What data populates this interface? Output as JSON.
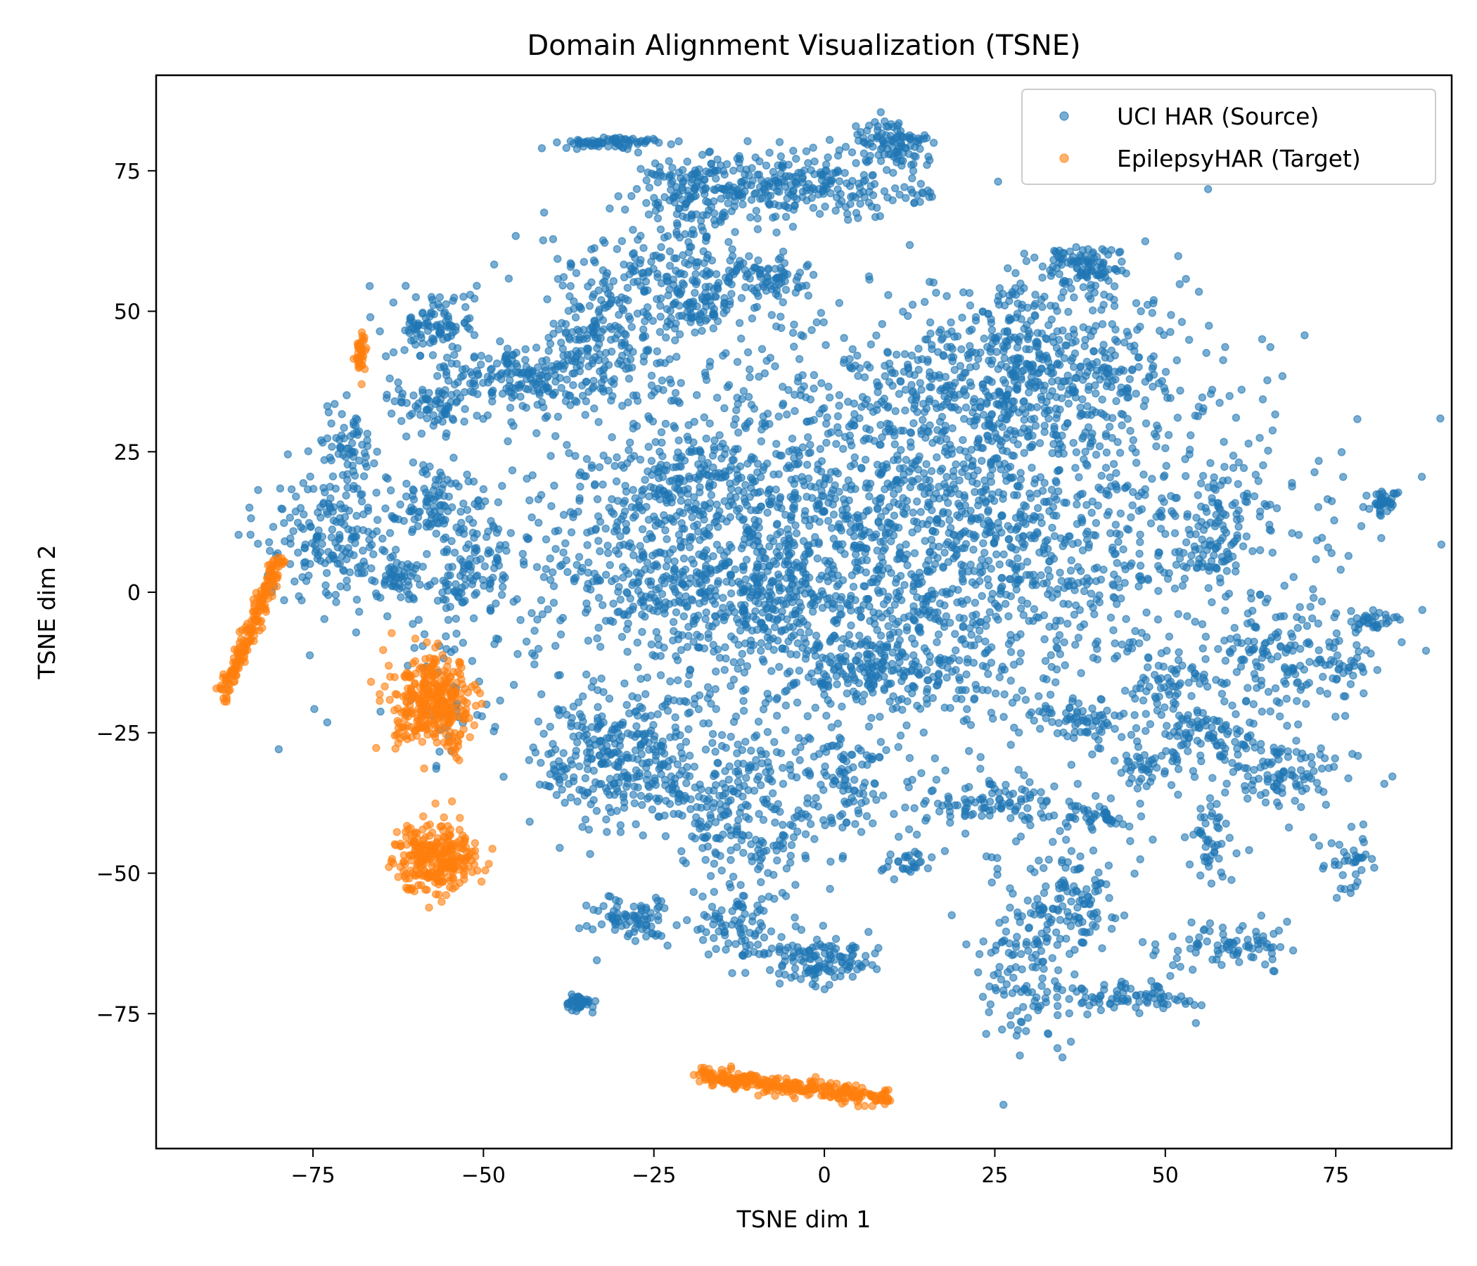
{
  "chart_data": {
    "type": "scatter",
    "title": "Domain Alignment Visualization (TSNE)",
    "xlabel": "TSNE dim 1",
    "ylabel": "TSNE dim 2",
    "xlim": [
      -98,
      92
    ],
    "ylim": [
      -99,
      92
    ],
    "xticks": [
      -75,
      -50,
      -25,
      0,
      25,
      50,
      75
    ],
    "yticks": [
      -75,
      -50,
      -25,
      0,
      25,
      50,
      75
    ],
    "xtick_labels": [
      "−75",
      "−50",
      "−25",
      "0",
      "25",
      "50",
      "75"
    ],
    "ytick_labels": [
      "−75",
      "−50",
      "−25",
      "0",
      "25",
      "50",
      "75"
    ],
    "grid": false,
    "legend_position": "top-right",
    "series": [
      {
        "name": "UCI HAR (Source)",
        "color": "#1f77b4",
        "opacity": 0.6,
        "marker": "circle",
        "clusters": [
          {
            "cx": 10,
            "cy": 10,
            "sx": 28,
            "sy": 18,
            "n": 2600
          },
          {
            "cx": 30,
            "cy": 40,
            "sx": 12,
            "sy": 7,
            "n": 500
          },
          {
            "cx": -20,
            "cy": 20,
            "sx": 6,
            "sy": 5,
            "n": 150
          },
          {
            "cx": -20,
            "cy": 0,
            "sx": 8,
            "sy": 6,
            "n": 200
          },
          {
            "cx": 8,
            "cy": -14,
            "sx": 6,
            "sy": 3,
            "n": 150
          },
          {
            "cx": -5,
            "cy": 72,
            "sx": 10,
            "sy": 3,
            "n": 300
          },
          {
            "cx": -20,
            "cy": 70,
            "sx": 4,
            "sy": 4,
            "n": 100
          },
          {
            "cx": 10,
            "cy": 80,
            "sx": 3,
            "sy": 2,
            "n": 100
          },
          {
            "cx": -31,
            "cy": 80,
            "sx": 4,
            "sy": 0.5,
            "n": 70
          },
          {
            "cx": -25,
            "cy": 57,
            "sx": 8,
            "sy": 4,
            "n": 180
          },
          {
            "cx": -32,
            "cy": 45,
            "sx": 5,
            "sy": 4,
            "n": 150
          },
          {
            "cx": -9,
            "cy": 56,
            "sx": 3,
            "sy": 2,
            "n": 80
          },
          {
            "cx": -18,
            "cy": 50,
            "sx": 3,
            "sy": 2,
            "n": 60
          },
          {
            "cx": -45,
            "cy": 38,
            "sx": 6,
            "sy": 3,
            "n": 180
          },
          {
            "cx": -57,
            "cy": 48,
            "sx": 3,
            "sy": 3,
            "n": 100
          },
          {
            "cx": -57,
            "cy": 33,
            "sx": 3,
            "sy": 2,
            "n": 60
          },
          {
            "cx": -70,
            "cy": 26,
            "sx": 2,
            "sy": 4,
            "n": 60
          },
          {
            "cx": -72,
            "cy": 10,
            "sx": 5,
            "sy": 6,
            "n": 200
          },
          {
            "cx": -58,
            "cy": 17,
            "sx": 3,
            "sy": 3,
            "n": 80
          },
          {
            "cx": -52,
            "cy": 5,
            "sx": 3,
            "sy": 5,
            "n": 100
          },
          {
            "cx": -62,
            "cy": 2,
            "sx": 3,
            "sy": 2,
            "n": 50
          },
          {
            "cx": 38,
            "cy": 58,
            "sx": 3,
            "sy": 2,
            "n": 100
          },
          {
            "cx": 82,
            "cy": 16,
            "sx": 1,
            "sy": 1,
            "n": 40
          },
          {
            "cx": 58,
            "cy": 10,
            "sx": 4,
            "sy": 6,
            "n": 100
          },
          {
            "cx": -55,
            "cy": -20,
            "sx": 3,
            "sy": 6,
            "n": 40
          },
          {
            "cx": -30,
            "cy": -30,
            "sx": 6,
            "sy": 6,
            "n": 300
          },
          {
            "cx": -12,
            "cy": -40,
            "sx": 6,
            "sy": 8,
            "n": 250
          },
          {
            "cx": 3,
            "cy": -33,
            "sx": 3,
            "sy": 5,
            "n": 100
          },
          {
            "cx": -28,
            "cy": -58,
            "sx": 3,
            "sy": 2,
            "n": 80
          },
          {
            "cx": -13,
            "cy": -60,
            "sx": 3,
            "sy": 3,
            "n": 80
          },
          {
            "cx": 0,
            "cy": -66,
            "sx": 4,
            "sy": 2,
            "n": 120
          },
          {
            "cx": -36,
            "cy": -73,
            "sx": 1,
            "sy": 1,
            "n": 40
          },
          {
            "cx": 12,
            "cy": -48,
            "sx": 2,
            "sy": 1,
            "n": 30
          },
          {
            "cx": 25,
            "cy": -38,
            "sx": 6,
            "sy": 2,
            "n": 100
          },
          {
            "cx": 40,
            "cy": -40,
            "sx": 2,
            "sy": 1,
            "n": 40
          },
          {
            "cx": 37,
            "cy": -53,
            "sx": 3,
            "sy": 5,
            "n": 100
          },
          {
            "cx": 30,
            "cy": -65,
            "sx": 4,
            "sy": 8,
            "n": 150
          },
          {
            "cx": 45,
            "cy": -72,
            "sx": 5,
            "sy": 1.5,
            "n": 80
          },
          {
            "cx": 60,
            "cy": -63,
            "sx": 5,
            "sy": 2,
            "n": 80
          },
          {
            "cx": 57,
            "cy": -25,
            "sx": 5,
            "sy": 3,
            "n": 100
          },
          {
            "cx": 47,
            "cy": -31,
            "sx": 2,
            "sy": 2,
            "n": 40
          },
          {
            "cx": 57,
            "cy": -45,
            "sx": 2,
            "sy": 4,
            "n": 50
          },
          {
            "cx": 70,
            "cy": -12,
            "sx": 6,
            "sy": 4,
            "n": 150
          },
          {
            "cx": 68,
            "cy": -33,
            "sx": 5,
            "sy": 3,
            "n": 100
          },
          {
            "cx": 77,
            "cy": -47,
            "sx": 2,
            "sy": 3,
            "n": 40
          },
          {
            "cx": 80,
            "cy": -5,
            "sx": 2,
            "sy": 1,
            "n": 30
          },
          {
            "cx": 38,
            "cy": -23,
            "sx": 4,
            "sy": 2,
            "n": 60
          },
          {
            "cx": 51,
            "cy": -16,
            "sx": 3,
            "sy": 2,
            "n": 50
          },
          {
            "cx": -9,
            "cy": -3,
            "sx": 4,
            "sy": 4,
            "n": 60
          }
        ]
      },
      {
        "name": "EpilepsyHAR (Target)",
        "color": "#ff7f0e",
        "opacity": 0.6,
        "marker": "circle",
        "clusters": [
          {
            "x0": -88,
            "y0": -18,
            "x1": -80,
            "y1": 6,
            "spread": 0.6,
            "n": 200
          },
          {
            "cx": -68,
            "cy": 42,
            "sx": 0.4,
            "sy": 2,
            "n": 40
          },
          {
            "cx": -57,
            "cy": -20,
            "sx": 3,
            "sy": 4,
            "n": 350
          },
          {
            "cx": -57,
            "cy": -47,
            "sx": 3,
            "sy": 3,
            "n": 300
          },
          {
            "x0": -18,
            "y0": -86,
            "x1": 9,
            "y1": -90,
            "spread": 0.8,
            "n": 300
          }
        ]
      }
    ]
  }
}
